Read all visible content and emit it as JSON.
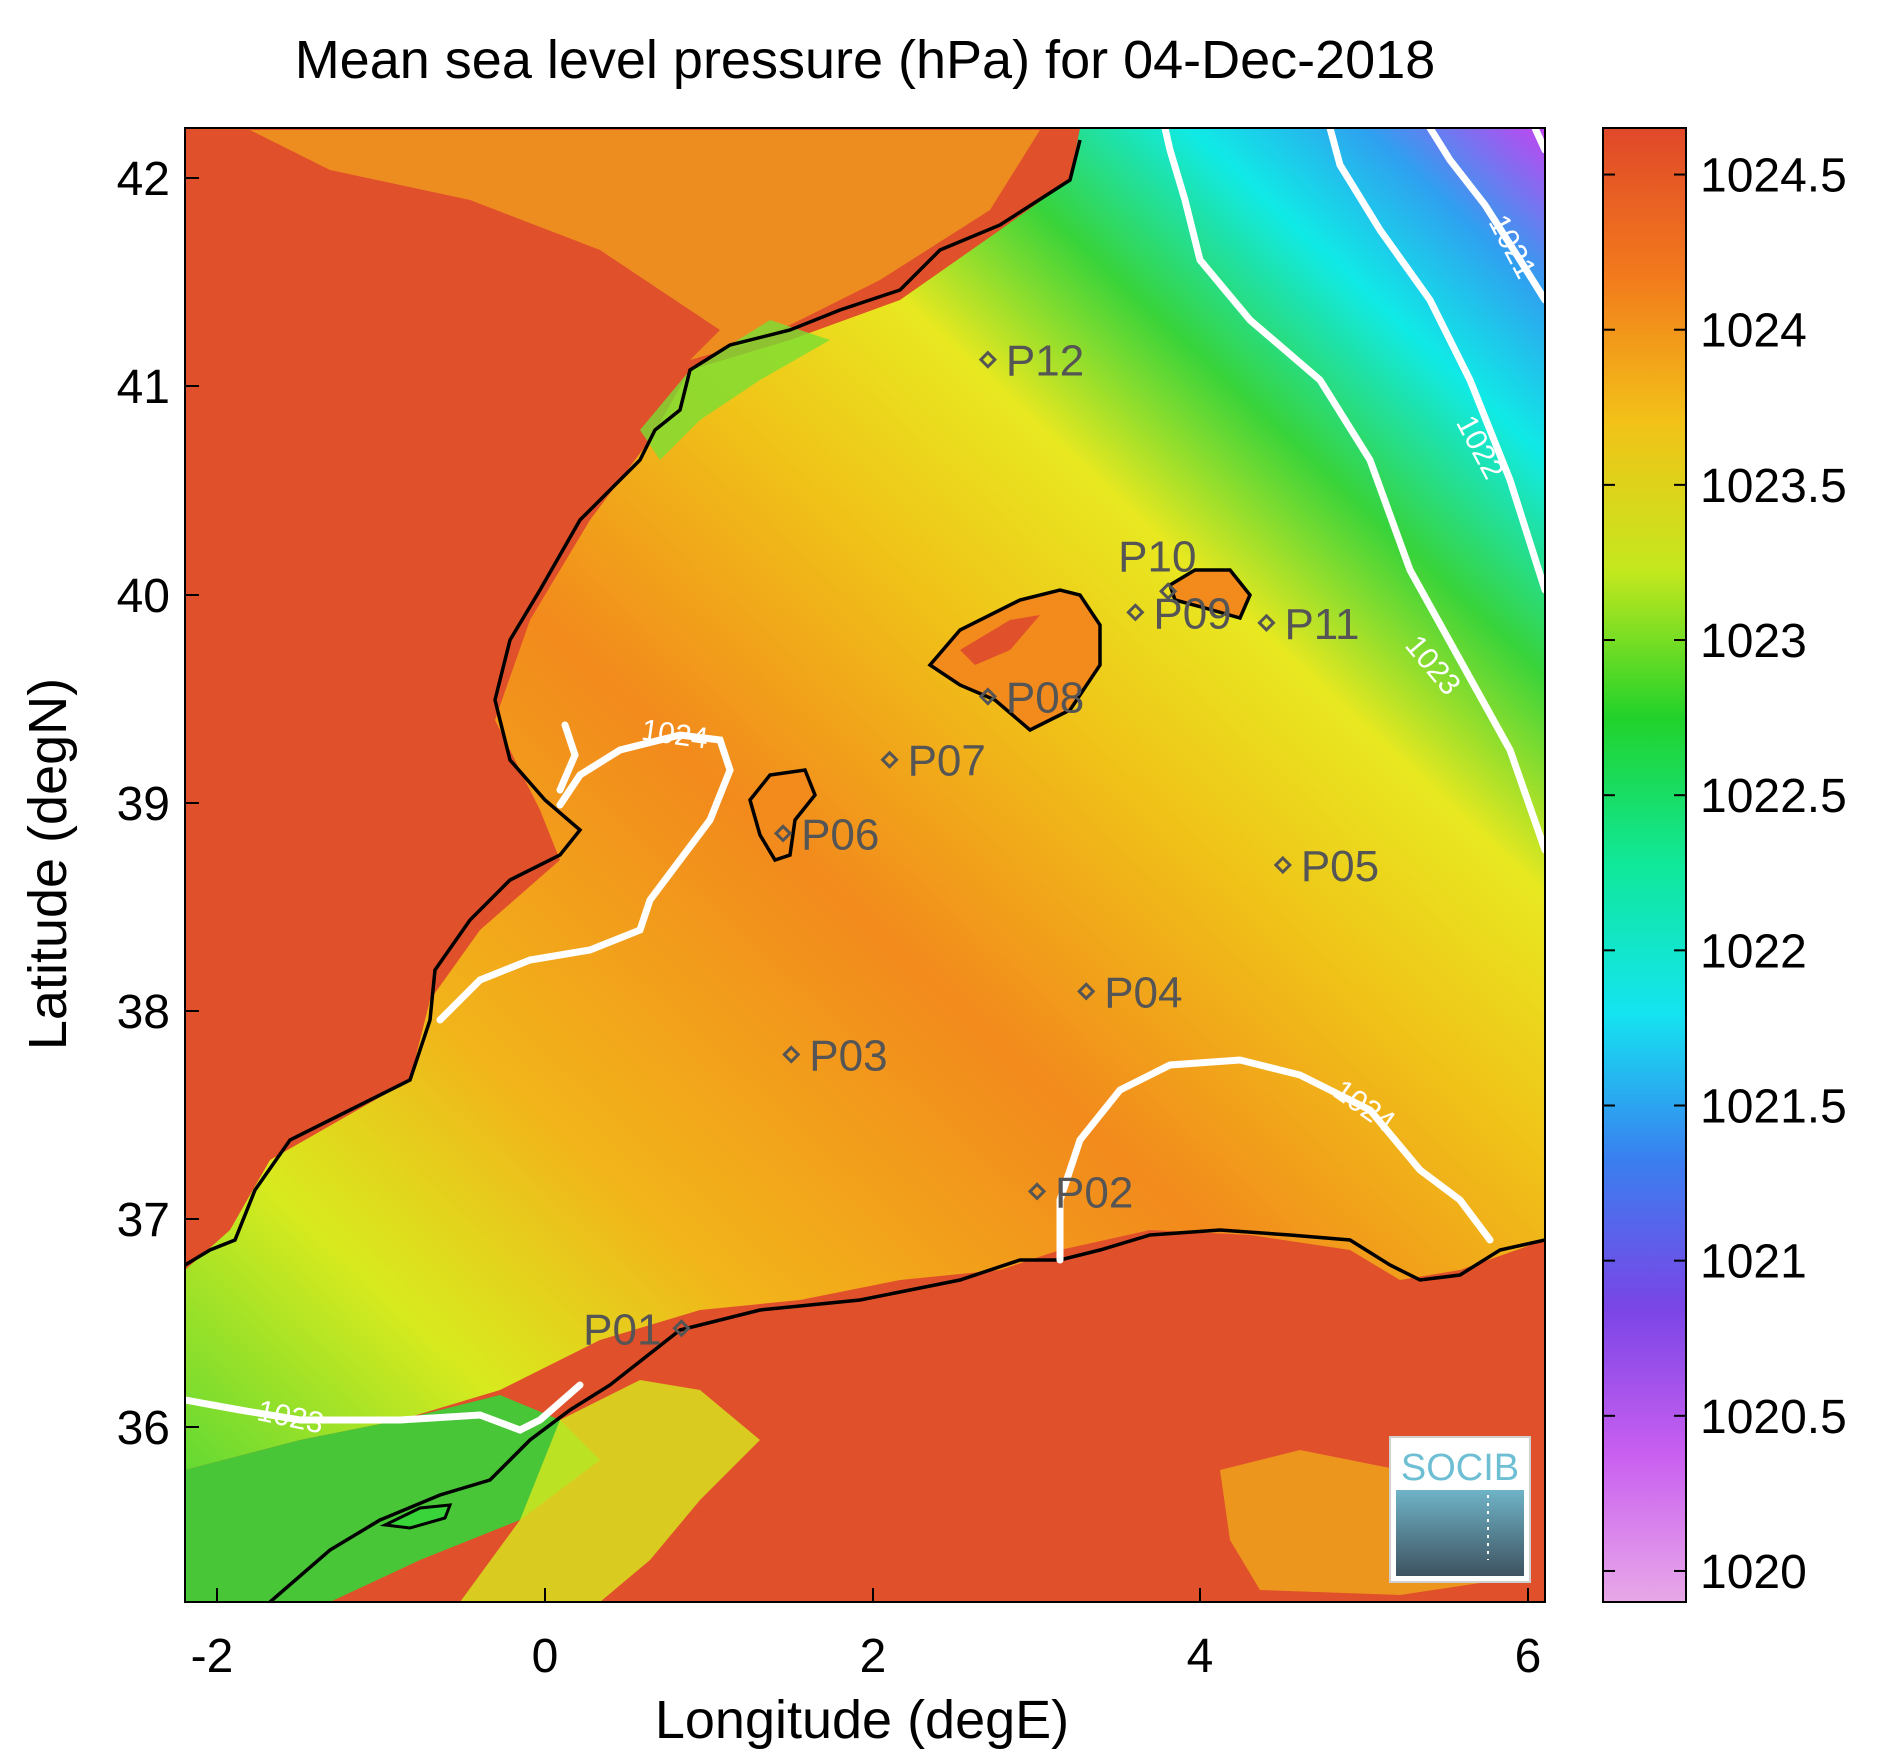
{
  "title": "Mean sea level pressure (hPa) for 04-Dec-2018",
  "xlabel": "Longitude (degE)",
  "ylabel": "Latitude (degN)",
  "x_ticks": [
    "-2",
    "0",
    "2",
    "4",
    "6"
  ],
  "y_ticks": [
    "36",
    "37",
    "38",
    "39",
    "40",
    "41",
    "42"
  ],
  "colorbar_ticks": [
    "1020",
    "1020.5",
    "1021",
    "1021.5",
    "1022",
    "1022.5",
    "1023",
    "1023.5",
    "1024",
    "1024.5"
  ],
  "contour_labels": [
    "1021",
    "1022",
    "1023",
    "1023",
    "1024",
    "1024"
  ],
  "logo_text": "SOCIB",
  "colors": {
    "land_high": "#e0502a",
    "sea_mid": "#f28a1c",
    "sea_yellow": "#e8e820",
    "green": "#39d33a",
    "cyan": "#10eae6",
    "blue": "#2fa0f0",
    "purple": "#7a45e6",
    "contour": "#ffffff",
    "coast": "#000000"
  },
  "chart_data": {
    "type": "heatmap",
    "variable": "Mean sea level pressure",
    "unit": "hPa",
    "date": "04-Dec-2018",
    "xlim": [
      -2.2,
      6.1
    ],
    "ylim": [
      35.2,
      42.2
    ],
    "clim": [
      1019.9,
      1024.65
    ],
    "contour_levels": [
      1021,
      1022,
      1023,
      1024
    ],
    "stations": [
      {
        "label": "P01",
        "lon": 0.83,
        "lat": 36.5
      },
      {
        "label": "P02",
        "lon": 3.0,
        "lat": 37.15
      },
      {
        "label": "P03",
        "lon": 1.5,
        "lat": 37.8
      },
      {
        "label": "P04",
        "lon": 3.3,
        "lat": 38.1
      },
      {
        "label": "P05",
        "lon": 4.5,
        "lat": 38.7
      },
      {
        "label": "P06",
        "lon": 1.45,
        "lat": 38.85
      },
      {
        "label": "P07",
        "lon": 2.1,
        "lat": 39.2
      },
      {
        "label": "P08",
        "lon": 2.7,
        "lat": 39.5
      },
      {
        "label": "P09",
        "lon": 3.6,
        "lat": 39.9
      },
      {
        "label": "P10",
        "lon": 3.8,
        "lat": 40.0
      },
      {
        "label": "P11",
        "lon": 4.4,
        "lat": 39.85
      },
      {
        "label": "P12",
        "lon": 2.7,
        "lat": 41.1
      }
    ]
  }
}
